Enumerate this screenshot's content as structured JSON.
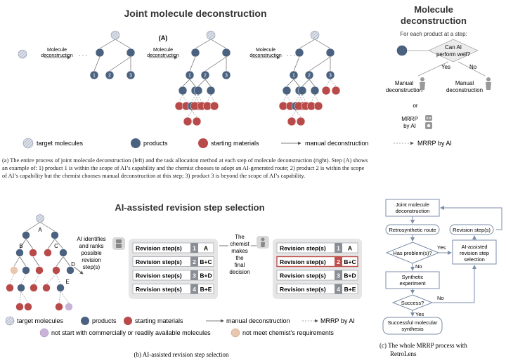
{
  "top": {
    "title": "Joint molecule deconstruction",
    "step_a_label": "(A)",
    "arrow_label_1": "Molecule",
    "arrow_label_2": "deconstruction",
    "dots": "· · ·",
    "products": [
      "1",
      "2",
      "3"
    ]
  },
  "right_panel": {
    "title_line1": "Molecule",
    "title_line2": "deconstruction",
    "subtitle": "For each product at a step:",
    "question_line1": "Can AI",
    "question_line2": "perform well?",
    "yes": "Yes",
    "no": "No",
    "manual_line1": "Manual",
    "manual_line2": "deconstruction",
    "or": "or",
    "mrrp_line1": "MRRP",
    "mrrp_line2": "by AI"
  },
  "legend_top": {
    "target": "target molecules",
    "products": "products",
    "starting": "starting materials",
    "manual": "manual deconstruction",
    "mrrp": "MRRP by AI"
  },
  "caption_a": {
    "line1": "(a)  The entire process of joint molecule deconstruction (left) and the task allocation method at each step of molecule deconstruction (right). Step (A) shows",
    "line2": "an example of: 1) product 1 is within the scope of AI’s capability and the chemist chooses to adopt an AI-generated route; 2) product 2 is within the scope",
    "line3": "of AI’s capability but the chemist chooses manual deconstruction at this step; 3) product 3 is beyond the scope of AI’s capability."
  },
  "bottom": {
    "title": "AI-assisted revision step selection",
    "tree_labels": [
      "A",
      "B",
      "C",
      "D",
      "E"
    ],
    "ai_text": [
      "AI identifies",
      "and ranks",
      "possible",
      "revision",
      "step(s)"
    ],
    "chemist_text": [
      "The",
      "chemist",
      "makes",
      "the",
      "final",
      "decision"
    ],
    "revision_label": "Revision step(s)",
    "revisions": [
      {
        "rank": "1",
        "step": "A"
      },
      {
        "rank": "2",
        "step": "B+C"
      },
      {
        "rank": "3",
        "step": "B+D"
      },
      {
        "rank": "4",
        "step": "B+E"
      }
    ],
    "selected_rank": "2"
  },
  "legend_bottom": {
    "target": "target molecules",
    "products": "products",
    "starting": "starting materials",
    "manual": "manual deconstruction",
    "mrrp": "MRRP by AI",
    "not_commercial": "not start with commercially or readily available molecules",
    "not_meet": "not meet chemist’s requirements"
  },
  "caption_b": "(b)  AI-assisted revision step selection",
  "flow": {
    "joint": [
      "Joint molecule",
      "deconstruction"
    ],
    "retro": "Retrosynthetic route",
    "has_problem": "Has problem(s)?",
    "yes": "Yes",
    "no": "No",
    "revision_steps": "Revision step(s)",
    "ai_assisted": [
      "AI-assisted",
      "revision step",
      "selection"
    ],
    "synthetic": [
      "Synthetic",
      "experiment"
    ],
    "success": "Success?",
    "success_no": "No",
    "success_yes": "Yes",
    "successful": [
      "Successful molecular",
      "synthesis"
    ]
  },
  "caption_c": [
    "(c)  The whole MRRP process with",
    "RetroLens"
  ],
  "colors": {
    "product": "#4a6280",
    "starting": "#b94a4a",
    "target": "#c5cad6",
    "purple": "#c9b3d9",
    "peach": "#e8c7ae",
    "flow": "#7b8da8",
    "highlight": "#c0504d"
  }
}
